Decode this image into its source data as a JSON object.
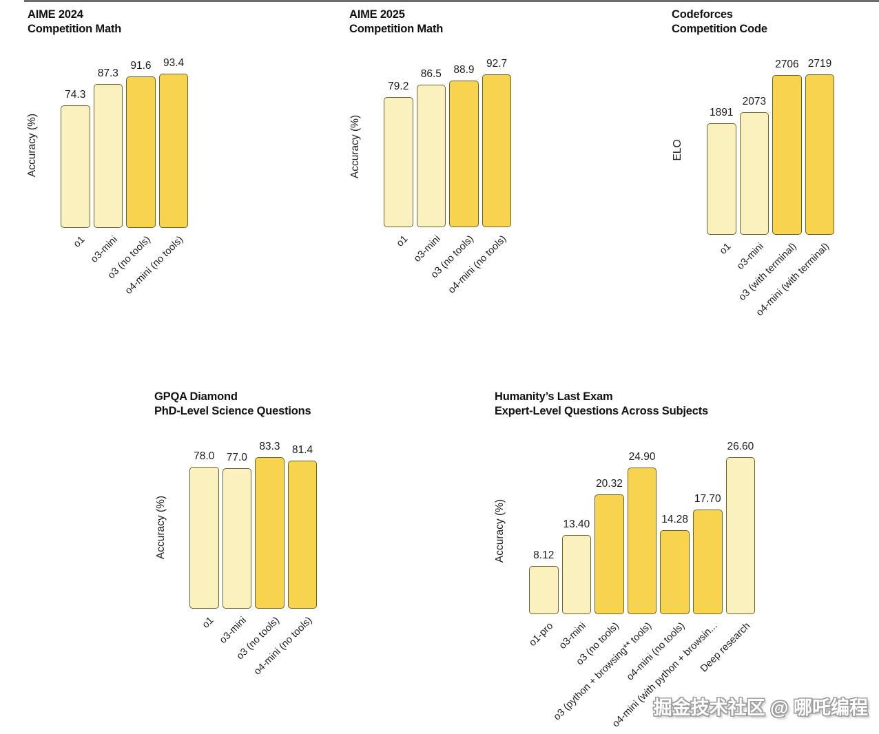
{
  "colors": {
    "background": "#ffffff",
    "bar_light": "#fbf1be",
    "bar_dark": "#f8d44e",
    "bar_border": "#69602a",
    "text": "#1a1a1a",
    "top_strip": "#474747"
  },
  "watermark": {
    "text": "掘金技术社区 @ 哪吒编程"
  },
  "chart_data": [
    {
      "type": "bar",
      "title": "AIME 2024",
      "subtitle": "Competition Math",
      "ylabel": "Accuracy (%)",
      "categories": [
        "o1",
        "o3-mini",
        "o3 (no tools)",
        "o4-mini (no tools)"
      ],
      "values": [
        74.3,
        87.3,
        91.6,
        93.4
      ],
      "value_labels": [
        "74.3",
        "87.3",
        "91.6",
        "93.4"
      ],
      "bar_styles": [
        "light",
        "light",
        "dark",
        "dark"
      ],
      "grid": false,
      "legend": "none"
    },
    {
      "type": "bar",
      "title": "AIME 2025",
      "subtitle": "Competition Math",
      "ylabel": "Accuracy (%)",
      "categories": [
        "o1",
        "o3-mini",
        "o3 (no tools)",
        "o4-mini (no tools)"
      ],
      "values": [
        79.2,
        86.5,
        88.9,
        92.7
      ],
      "value_labels": [
        "79.2",
        "86.5",
        "88.9",
        "92.7"
      ],
      "bar_styles": [
        "light",
        "light",
        "dark",
        "dark"
      ],
      "grid": false,
      "legend": "none"
    },
    {
      "type": "bar",
      "title": "Codeforces",
      "subtitle": "Competition Code",
      "ylabel": "ELO",
      "categories": [
        "o1",
        "o3-mini",
        "o3 (with terminal)",
        "o4-mini (with terminal)"
      ],
      "values": [
        1891,
        2073,
        2706,
        2719
      ],
      "value_labels": [
        "1891",
        "2073",
        "2706",
        "2719"
      ],
      "bar_styles": [
        "light",
        "light",
        "dark",
        "dark"
      ],
      "grid": false,
      "legend": "none"
    },
    {
      "type": "bar",
      "title": "GPQA Diamond",
      "subtitle": "PhD-Level Science Questions",
      "ylabel": "Accuracy (%)",
      "categories": [
        "o1",
        "o3-mini",
        "o3 (no tools)",
        "o4-mini (no tools)"
      ],
      "values": [
        78.0,
        77.0,
        83.3,
        81.4
      ],
      "value_labels": [
        "78.0",
        "77.0",
        "83.3",
        "81.4"
      ],
      "bar_styles": [
        "light",
        "light",
        "dark",
        "dark"
      ],
      "grid": false,
      "legend": "none"
    },
    {
      "type": "bar",
      "title": "Humanity’s Last Exam",
      "subtitle": "Expert-Level Questions Across Subjects",
      "ylabel": "Accuracy (%)",
      "categories": [
        "o1-pro",
        "o3-mini",
        "o3 (no tools)",
        "o3 (python + browsing** tools)",
        "o4-mini (no tools)",
        "o4-mini (with python + browsin...",
        "Deep research"
      ],
      "values": [
        8.12,
        13.4,
        20.32,
        24.9,
        14.28,
        17.7,
        26.6
      ],
      "value_labels": [
        "8.12",
        "13.40",
        "20.32",
        "24.90",
        "14.28",
        "17.70",
        "26.60"
      ],
      "bar_styles": [
        "light",
        "light",
        "dark",
        "dark",
        "dark",
        "dark",
        "light"
      ],
      "grid": false,
      "legend": "none"
    }
  ]
}
